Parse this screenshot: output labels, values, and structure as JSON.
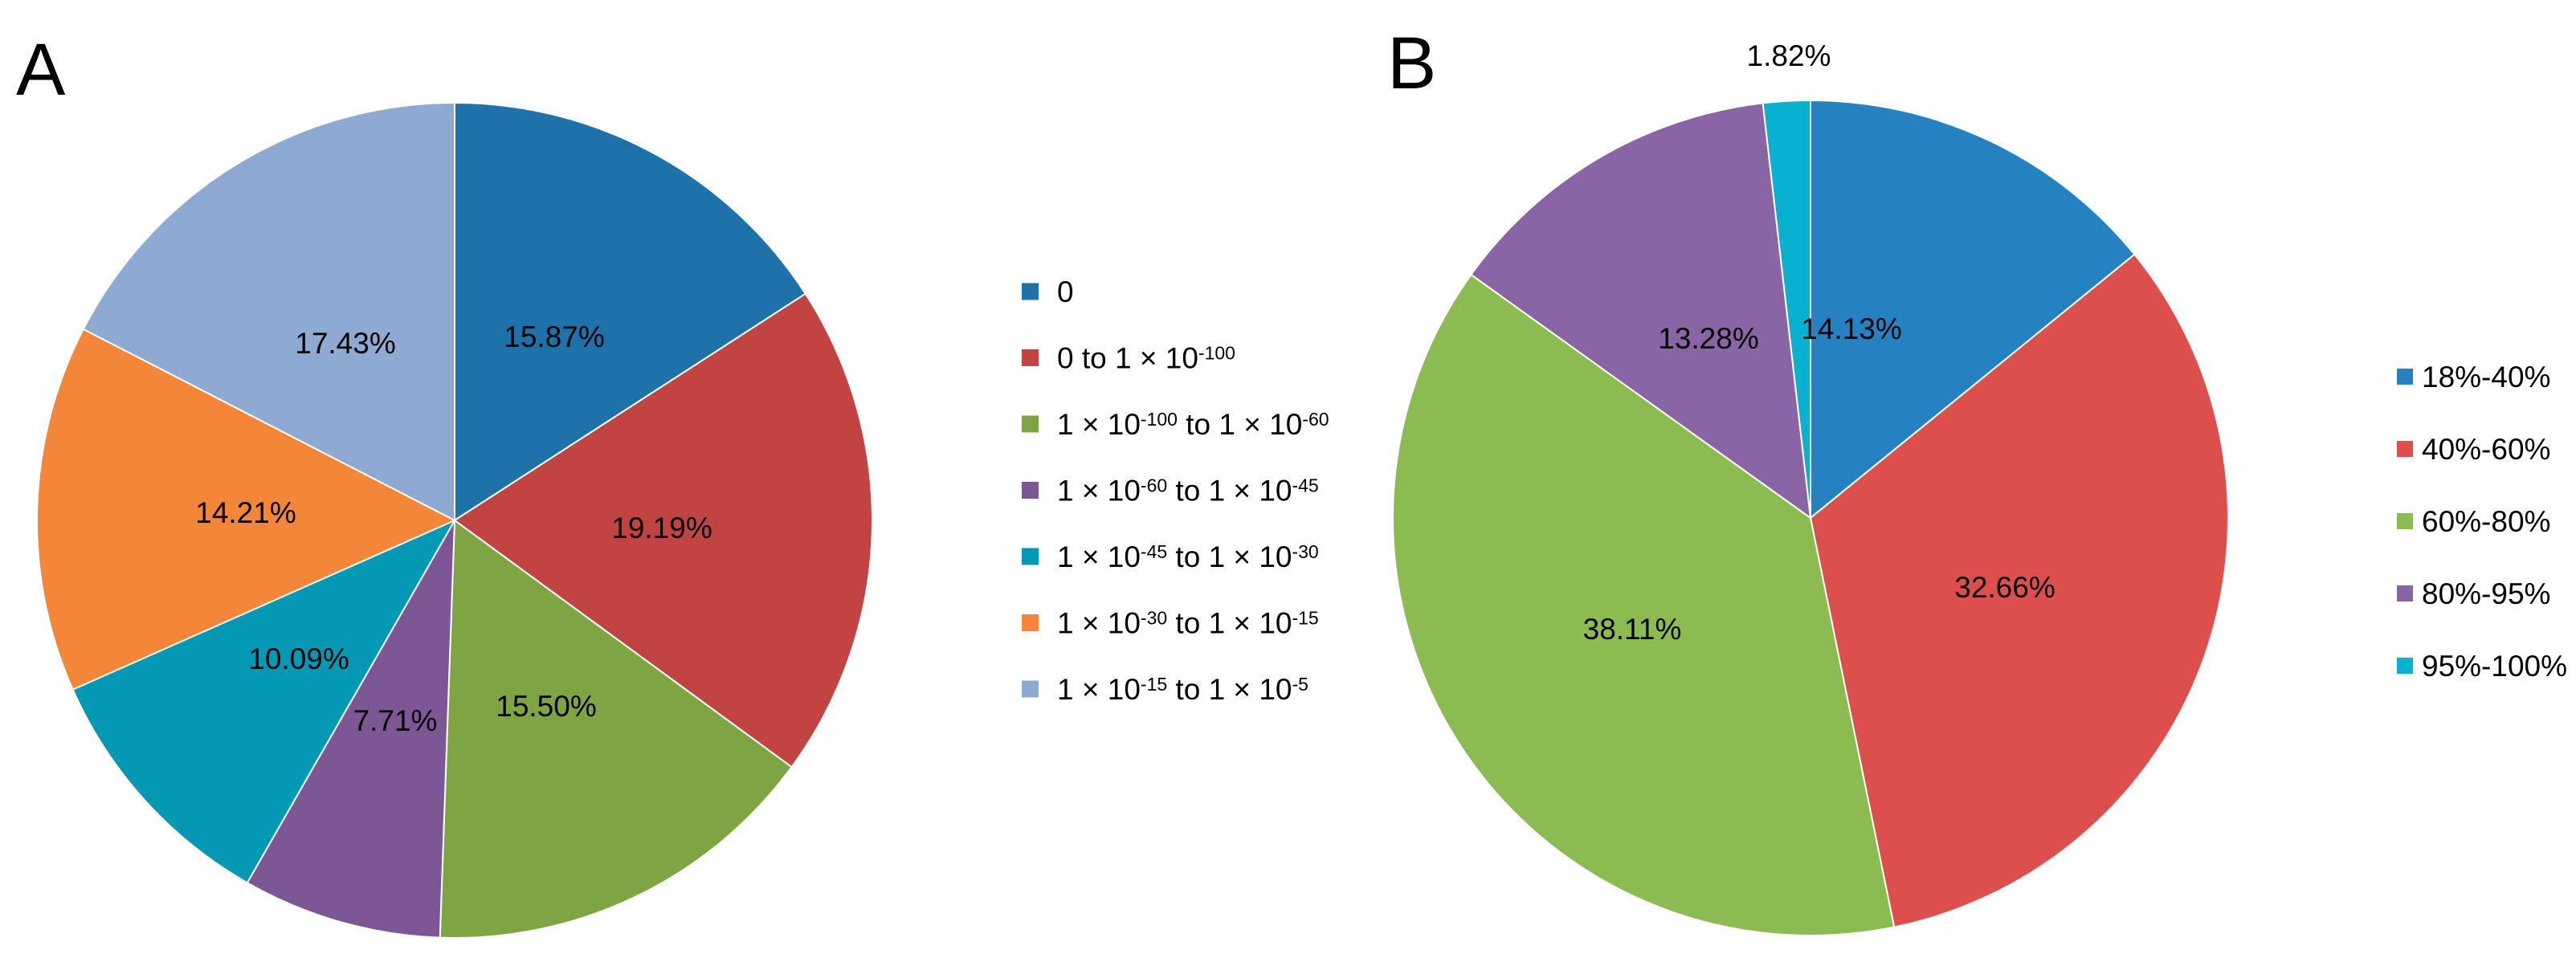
{
  "chart_data": [
    {
      "type": "pie",
      "panel_label": "A",
      "title": "",
      "start_angle": "12 o'clock",
      "direction": "clockwise",
      "legend_position": "middle",
      "slices": [
        {
          "label": "0",
          "value": 15.87,
          "display": "15.87%",
          "color": "#1f72a9",
          "legend": {
            "parts": [
              {
                "text": "0"
              }
            ]
          }
        },
        {
          "label": "0 to 1 × 10^-100",
          "value": 19.19,
          "display": "19.19%",
          "color": "#c24442",
          "legend": {
            "parts": [
              {
                "text": "0 to 1 × 10"
              },
              {
                "text": "-100",
                "sup": true
              }
            ]
          }
        },
        {
          "label": "1 × 10^-100 to 1 × 10^-60",
          "value": 15.5,
          "display": "15.50%",
          "color": "#7fa443",
          "legend": {
            "parts": [
              {
                "text": "1 × 10"
              },
              {
                "text": "-100",
                "sup": true
              },
              {
                "text": " to 1 × 10"
              },
              {
                "text": "-60",
                "sup": true
              }
            ]
          }
        },
        {
          "label": "1 × 10^-60 to 1 × 10^-45",
          "value": 7.71,
          "display": "7.71%",
          "color": "#7d5695",
          "legend": {
            "parts": [
              {
                "text": "1 × 10"
              },
              {
                "text": "-60",
                "sup": true
              },
              {
                "text": " to 1 × 10"
              },
              {
                "text": "-45",
                "sup": true
              }
            ]
          }
        },
        {
          "label": "1 × 10^-45 to 1 × 10^-30",
          "value": 10.09,
          "display": "10.09%",
          "color": "#0398b3",
          "legend": {
            "parts": [
              {
                "text": "1 × 10"
              },
              {
                "text": "-45",
                "sup": true
              },
              {
                "text": " to 1 × 10"
              },
              {
                "text": "-30",
                "sup": true
              }
            ]
          }
        },
        {
          "label": "1 × 10^-30 to 1 × 10^-15",
          "value": 14.21,
          "display": "14.21%",
          "color": "#f38639",
          "legend": {
            "parts": [
              {
                "text": "1 × 10"
              },
              {
                "text": "-30",
                "sup": true
              },
              {
                "text": " to 1 × 10"
              },
              {
                "text": "-15",
                "sup": true
              }
            ]
          }
        },
        {
          "label": "1 × 10^-15 to 1 × 10^-5",
          "value": 17.43,
          "display": "17.43%",
          "color": "#8eaad2",
          "legend": {
            "parts": [
              {
                "text": "1 × 10"
              },
              {
                "text": "-15",
                "sup": true
              },
              {
                "text": " to 1 × 10"
              },
              {
                "text": "-5",
                "sup": true
              }
            ]
          }
        }
      ]
    },
    {
      "type": "pie",
      "panel_label": "B",
      "title": "",
      "start_angle": "12 o'clock",
      "direction": "clockwise",
      "legend_position": "right",
      "slices": [
        {
          "label": "18%-40%",
          "value": 14.13,
          "display": "14.13%",
          "color": "#2681c1",
          "legend": {
            "parts": [
              {
                "text": "18%-40%"
              }
            ]
          }
        },
        {
          "label": "40%-60%",
          "value": 32.66,
          "display": "32.66%",
          "color": "#dc4f4d",
          "legend": {
            "parts": [
              {
                "text": "40%-60%"
              }
            ]
          }
        },
        {
          "label": "60%-80%",
          "value": 38.11,
          "display": "38.11%",
          "color": "#8cbc51",
          "legend": {
            "parts": [
              {
                "text": "60%-80%"
              }
            ]
          }
        },
        {
          "label": "80%-95%",
          "value": 13.28,
          "display": "13.28%",
          "color": "#8a65a6",
          "legend": {
            "parts": [
              {
                "text": "80%-95%"
              }
            ]
          }
        },
        {
          "label": "95%-100%",
          "value": 1.82,
          "display": "1.82%",
          "color": "#07b1cf",
          "legend": {
            "parts": [
              {
                "text": "95%-100%"
              }
            ]
          }
        }
      ]
    }
  ]
}
